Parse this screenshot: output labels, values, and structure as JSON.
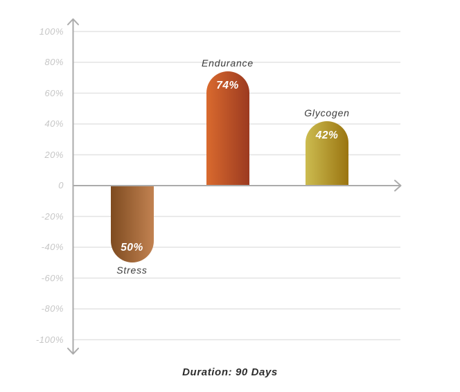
{
  "chart_data": {
    "type": "bar",
    "caption": "Duration: 90 Days",
    "categories": [
      "Stress",
      "Endurance",
      "Glycogen"
    ],
    "values": [
      -50,
      74,
      42
    ],
    "value_labels": [
      "50%",
      "74%",
      "42%"
    ],
    "yticks": [
      "100%",
      "80%",
      "60%",
      "40%",
      "20%",
      "0",
      "-20%",
      "-40%",
      "-60%",
      "-80%",
      "-100%"
    ],
    "ylim": [
      -100,
      100
    ],
    "grid": true,
    "legend": "none",
    "colors": {
      "axis": "#ababab",
      "grid": "#e3e3e3",
      "tick_labels": "#c6c6c6",
      "category_labels": "#3b3b3b",
      "value_labels": "#ffffff",
      "caption": "#2d2d2d",
      "background": "#ffffff"
    },
    "bar_gradients": [
      {
        "from": "#7e4b20",
        "to": "#c28251"
      },
      {
        "from": "#d96a2e",
        "to": "#9c3a20"
      },
      {
        "from": "#ccbc50",
        "to": "#9a7410"
      }
    ]
  }
}
